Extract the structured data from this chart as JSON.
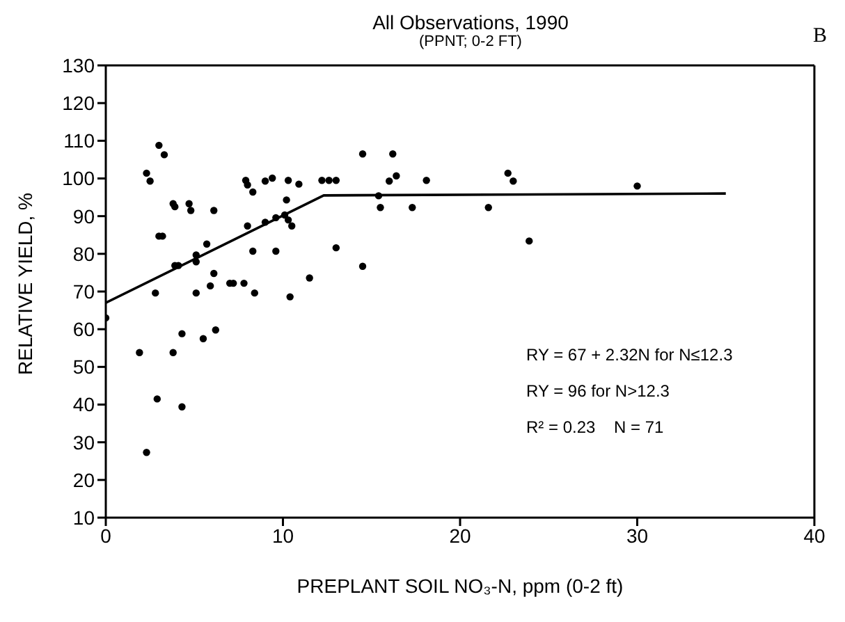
{
  "chart_data": {
    "type": "scatter",
    "title": "All Observations, 1990",
    "subtitle": "(PPNT; 0-2 FT)",
    "xlabel": "PREPLANT SOIL NO₃-N, ppm (0-2 ft)",
    "ylabel": "RELATIVE YIELD, %",
    "annotations": [
      "B",
      "RY = 67 + 2.32N for N≤12.3",
      "RY = 96 for N>12.3",
      "R² = 0.23    N = 71"
    ],
    "xlim": [
      0,
      40
    ],
    "xticks": [
      0,
      10,
      20,
      30,
      40
    ],
    "ylim": [
      10,
      130
    ],
    "yticks": [
      10,
      20,
      30,
      40,
      50,
      60,
      70,
      80,
      90,
      100,
      110,
      120,
      130
    ],
    "marker": "circle",
    "series": [
      {
        "type": "scatter",
        "color": "#000000",
        "x": [
          0,
          3.0,
          3.3,
          2.3,
          2.5,
          3.8,
          3.9,
          4.7,
          4.8,
          6.1,
          3.0,
          3.2,
          2.8,
          3.9,
          4.1,
          5.1,
          5.1,
          5.7,
          5.1,
          6.1,
          5.9,
          7.0,
          7.2,
          7.8,
          8.4,
          8.0,
          8.3,
          9.6,
          7.9,
          8.0,
          8.3,
          9.0,
          9.4,
          9.0,
          9.6,
          10.1,
          10.3,
          10.5,
          10.2,
          10.3,
          10.9,
          10.4,
          11.5,
          12.2,
          12.6,
          13.0,
          13.0,
          1.9,
          3.8,
          4.3,
          5.5,
          6.2,
          2.9,
          4.3,
          2.3,
          14.5,
          16.2,
          16.0,
          16.4,
          18.1,
          15.4,
          15.5,
          17.3,
          21.6,
          22.7,
          23.0,
          14.5,
          23.9,
          30
        ],
        "values": [
          63,
          108.8,
          106.3,
          101.4,
          99.3,
          93.3,
          92.5,
          93.3,
          91.5,
          91.5,
          84.7,
          84.7,
          69.6,
          76.9,
          76.9,
          79.7,
          77.9,
          82.6,
          69.6,
          74.8,
          71.5,
          72.2,
          72.2,
          72.2,
          69.6,
          87.4,
          80.7,
          80.7,
          99.5,
          98.3,
          96.4,
          99.3,
          100.1,
          88.4,
          89.6,
          90.3,
          89.0,
          87.4,
          94.3,
          99.5,
          98.5,
          68.6,
          73.6,
          99.5,
          99.5,
          99.5,
          81.6,
          53.8,
          53.8,
          58.8,
          57.5,
          59.8,
          41.5,
          39.4,
          27.3,
          106.5,
          106.5,
          99.3,
          100.7,
          99.5,
          95.4,
          92.3,
          92.3,
          92.3,
          101.4,
          99.3,
          76.7,
          83.4,
          98
        ]
      },
      {
        "type": "line",
        "color": "#000000",
        "marker": "none",
        "x": [
          0,
          12.3,
          35
        ],
        "values": [
          67,
          95.5,
          96
        ]
      }
    ]
  }
}
